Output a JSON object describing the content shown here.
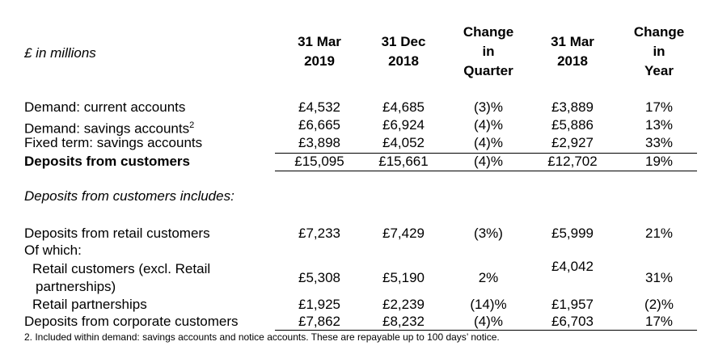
{
  "header": {
    "unit_label": "£ in millions",
    "columns": [
      [
        "31 Mar",
        "2019"
      ],
      [
        "31 Dec",
        "2018"
      ],
      [
        "Change",
        "in",
        "Quarter"
      ],
      [
        "31 Mar",
        "2018"
      ],
      [
        "Change",
        "in",
        "Year"
      ]
    ]
  },
  "rows": [
    {
      "label": "Demand: current accounts",
      "values": [
        "£4,532",
        "£4,685",
        "(3)%",
        "£3,889",
        "17%"
      ]
    },
    {
      "label": "Demand: savings accounts",
      "sup": "2",
      "values": [
        "£6,665",
        "£6,924",
        "(4)%",
        "£5,886",
        "13%"
      ]
    },
    {
      "label": "Fixed term: savings accounts",
      "values": [
        "£3,898",
        "£4,052",
        "(4)%",
        "£2,927",
        "33%"
      ]
    },
    {
      "label": "Deposits from customers",
      "values": [
        "£15,095",
        "£15,661",
        "(4)%",
        "£12,702",
        "19%"
      ]
    }
  ],
  "section_title": "Deposits from customers includes:",
  "rows2": [
    {
      "label": "Deposits from retail customers",
      "values": [
        "£7,233",
        "£7,429",
        "(3%)",
        "£5,999",
        "21%"
      ]
    },
    {
      "label": "Of which:"
    },
    {
      "label": "Retail customers (excl. Retail",
      "label2": "partnerships)",
      "values": [
        "£5,308",
        "£5,190",
        "2%",
        "£4,042",
        "31%"
      ]
    },
    {
      "label": "Retail partnerships",
      "values": [
        "£1,925",
        "£2,239",
        "(14)%",
        "£1,957",
        "(2)%"
      ]
    },
    {
      "label": "Deposits from corporate customers",
      "values": [
        "£7,862",
        "£8,232",
        "(4)%",
        "£6,703",
        "17%"
      ]
    }
  ],
  "footnote": "2. Included within demand: savings accounts and notice accounts. These are repayable up to 100 days’ notice."
}
